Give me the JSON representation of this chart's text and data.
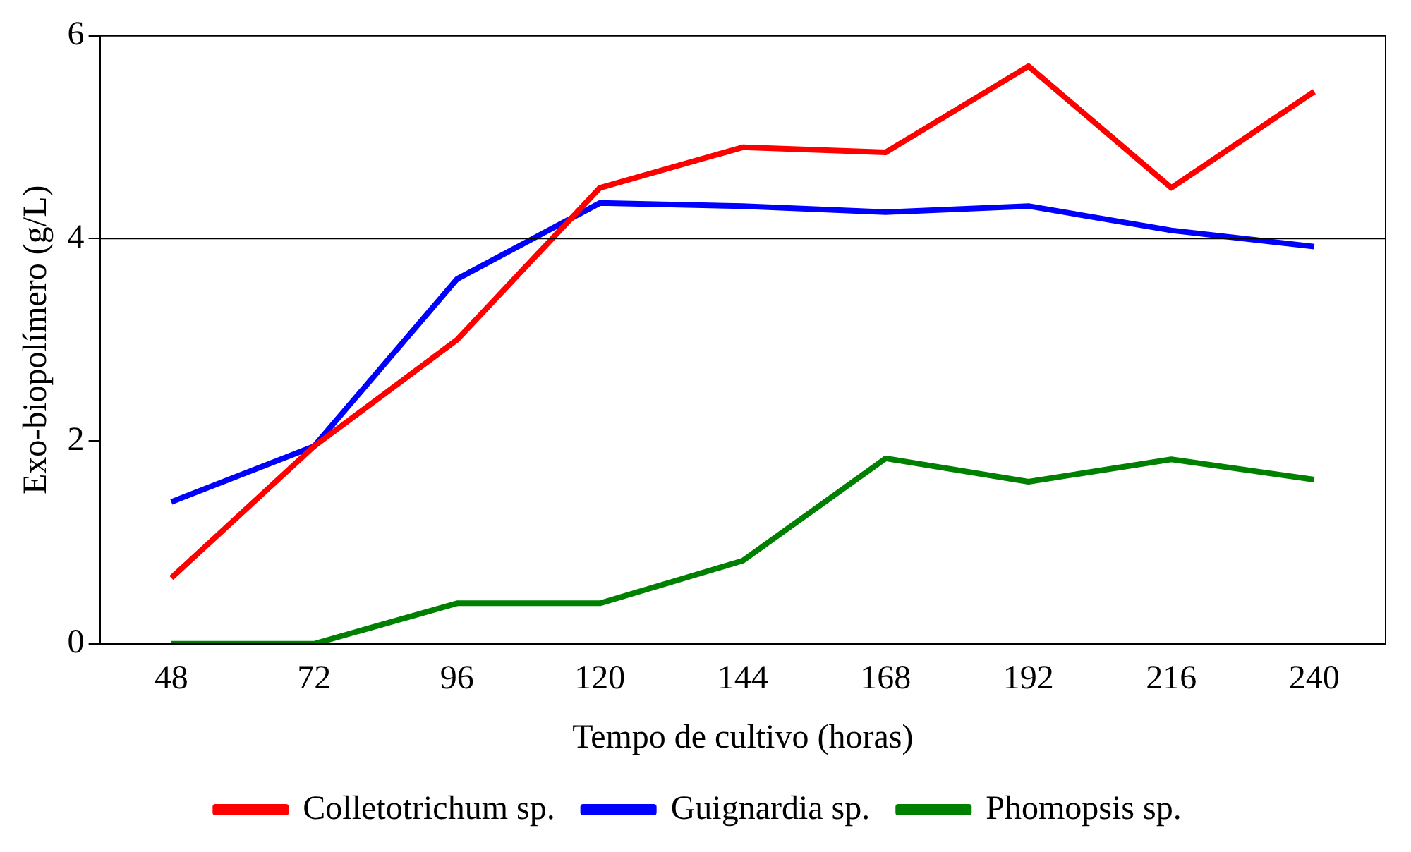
{
  "chart_data": {
    "type": "line",
    "xlabel": "Tempo de cultivo (horas)",
    "ylabel": "Exo-biopolímero (g/L)",
    "categories": [
      "48",
      "72",
      "96",
      "120",
      "144",
      "168",
      "192",
      "216",
      "240"
    ],
    "series": [
      {
        "name": "Colletotrichum sp.",
        "color": "#ff0000",
        "values": [
          0.65,
          1.95,
          3.0,
          4.5,
          4.9,
          4.85,
          5.7,
          4.5,
          5.45
        ]
      },
      {
        "name": "Guignardia sp.",
        "color": "#0000ff",
        "values": [
          1.4,
          1.95,
          3.6,
          4.35,
          4.32,
          4.26,
          4.32,
          4.08,
          3.92
        ]
      },
      {
        "name": "Phomopsis sp.",
        "color": "#008000",
        "values": [
          0,
          0,
          0.4,
          0.4,
          0.82,
          1.83,
          1.6,
          1.82,
          1.62
        ]
      }
    ],
    "ylim": [
      0,
      6
    ],
    "yticks": [
      0,
      2,
      4,
      6
    ],
    "ref_lines": [
      {
        "axis": "y",
        "value": 4,
        "color": "#000000"
      }
    ],
    "legend": "bottom",
    "marker": "none",
    "line_style": "solid"
  }
}
